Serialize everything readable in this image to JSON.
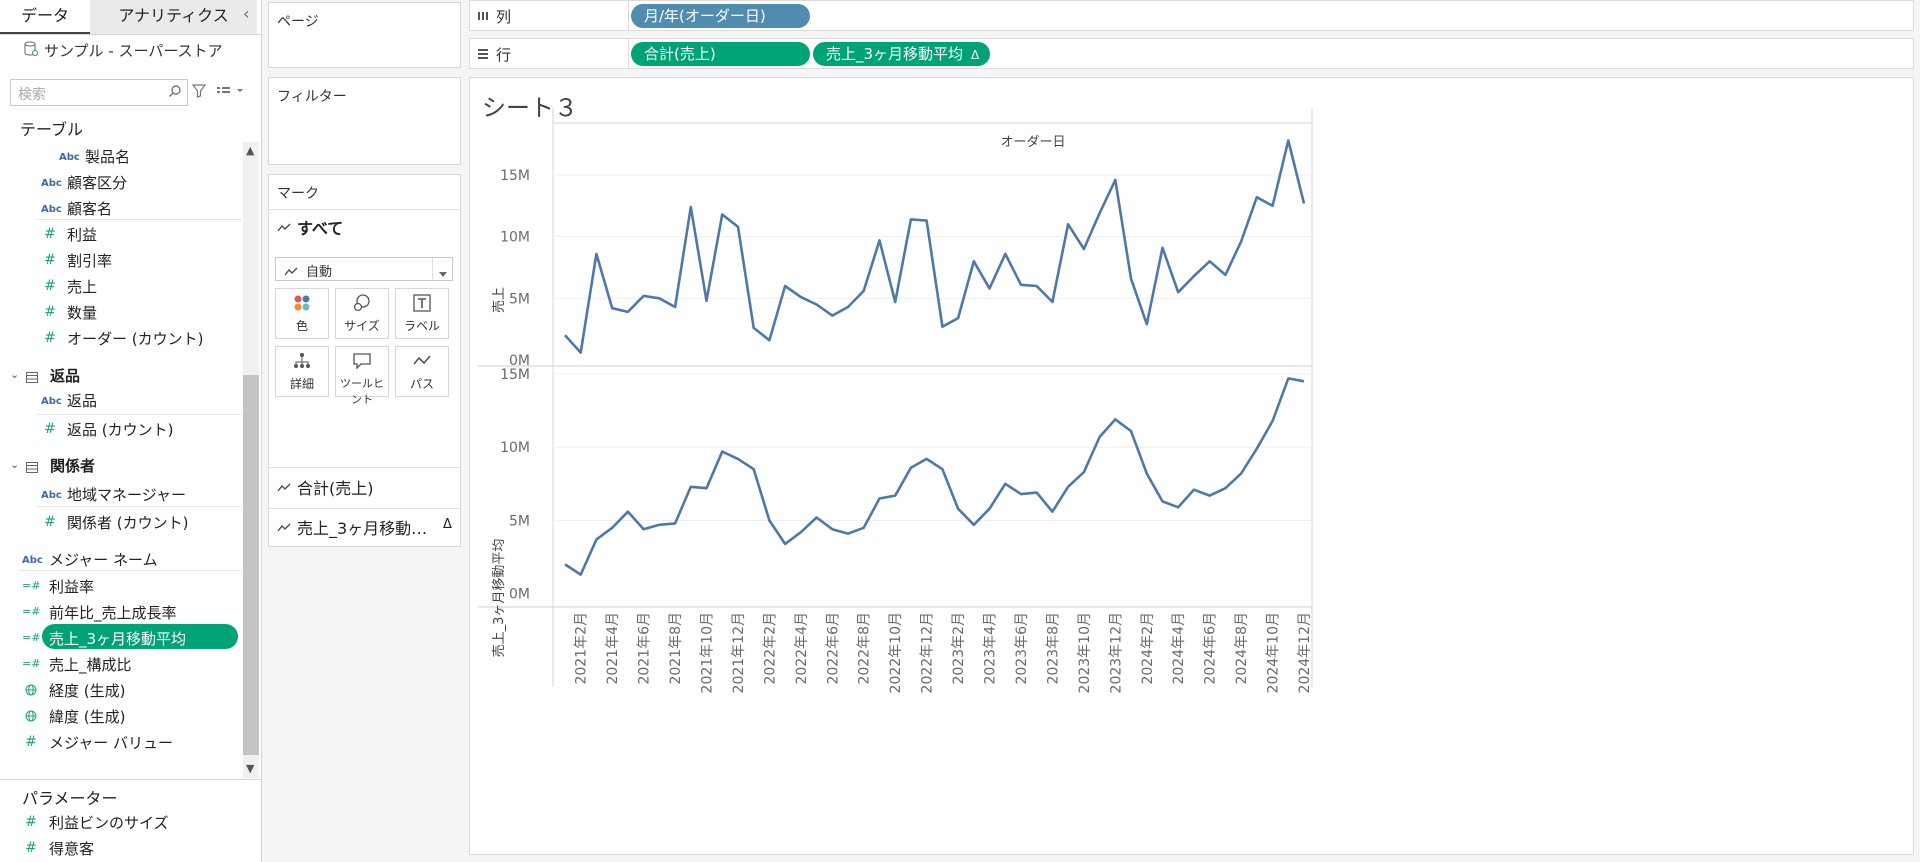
{
  "data_pane": {
    "tab_data": "データ",
    "tab_analytics": "アナリティクス",
    "collapse_glyph": "‹",
    "datasource": "サンプル - スーパーストア",
    "search_placeholder": "検索",
    "tables_header": "テーブル",
    "fields_a": [
      {
        "type": "Abc",
        "label": "製品名"
      },
      {
        "type": "Abc",
        "label": "顧客区分"
      },
      {
        "type": "Abc",
        "label": "顧客名"
      },
      {
        "type": "#",
        "label": "利益"
      },
      {
        "type": "#",
        "label": "割引率"
      },
      {
        "type": "#",
        "label": "売上"
      },
      {
        "type": "#",
        "label": "数量"
      },
      {
        "type": "#",
        "label": "オーダー (カウント)"
      }
    ],
    "table_returns": "返品",
    "fields_returns": [
      {
        "type": "Abc",
        "label": "返品"
      },
      {
        "type": "#",
        "label": "返品 (カウント)"
      }
    ],
    "table_people": "関係者",
    "fields_people": [
      {
        "type": "Abc",
        "label": "地域マネージャー"
      },
      {
        "type": "#",
        "label": "関係者 (カウント)"
      }
    ],
    "measure_names": "メジャー ネーム",
    "calc_fields": [
      {
        "type": "=#",
        "label": "利益率"
      },
      {
        "type": "=#",
        "label": "前年比_売上成長率"
      },
      {
        "type": "=#",
        "label": "売上_3ヶ月移動平均"
      },
      {
        "type": "=#",
        "label": "売上_構成比"
      },
      {
        "type": "geo",
        "label": "経度 (生成)"
      },
      {
        "type": "geo",
        "label": "緯度 (生成)"
      },
      {
        "type": "#",
        "label": "メジャー バリュー"
      }
    ],
    "parameters_header": "パラメーター",
    "parameters": [
      {
        "type": "#",
        "label": "利益ビンのサイズ"
      },
      {
        "type": "#",
        "label": "得意客"
      }
    ]
  },
  "pages_label": "ページ",
  "filters_label": "フィルター",
  "marks": {
    "header": "マーク",
    "all_label": "すべて",
    "type_select": "自動",
    "buttons": [
      "色",
      "サイズ",
      "ラベル",
      "詳細",
      "ツールヒント",
      "パス"
    ],
    "card_sum": "合計(売上)",
    "card_ma": "売上_3ヶ月移動…",
    "delta_glyph": "Δ"
  },
  "shelves": {
    "columns_label": "列",
    "rows_label": "行",
    "columns_pill": "月/年(オーダー日)",
    "rows_pill_1": "合計(売上)",
    "rows_pill_2": "売上_3ヶ月移動平均",
    "delta_glyph": "Δ"
  },
  "colors": {
    "line": "#4e79a7",
    "pill_green": "#00a375",
    "pill_blue": "#4f8cb0"
  },
  "sheet_title": "シート３",
  "chart_data": {
    "type": "line",
    "header": "オーダー日",
    "x_ticks": [
      "2021年2月",
      "2021年4月",
      "2021年6月",
      "2021年8月",
      "2021年10月",
      "2021年12月",
      "2022年2月",
      "2022年4月",
      "2022年6月",
      "2022年8月",
      "2022年10月",
      "2022年12月",
      "2023年2月",
      "2023年4月",
      "2023年6月",
      "2023年8月",
      "2023年10月",
      "2023年12月",
      "2024年2月",
      "2024年4月",
      "2024年6月",
      "2024年8月",
      "2024年10月",
      "2024年12月"
    ],
    "top": {
      "ylabel": "売上",
      "ylim": [
        0,
        18
      ],
      "y_ticks": [
        {
          "v": 0,
          "label": "0M"
        },
        {
          "v": 5,
          "label": "5M"
        },
        {
          "v": 10,
          "label": "10M"
        },
        {
          "v": 15,
          "label": "15M"
        }
      ],
      "values": [
        2.0,
        0.6,
        8.6,
        4.2,
        3.9,
        5.2,
        5.0,
        4.3,
        12.4,
        4.8,
        11.8,
        10.8,
        2.6,
        1.6,
        6.0,
        5.1,
        4.5,
        3.6,
        4.3,
        5.6,
        9.7,
        4.7,
        11.4,
        11.3,
        2.7,
        3.4,
        8.0,
        5.8,
        8.6,
        6.1,
        6.0,
        4.7,
        11.0,
        9.0,
        11.9,
        14.6,
        6.6,
        2.9,
        9.1,
        5.5,
        6.8,
        8.0,
        6.9,
        9.6,
        13.2,
        12.5,
        17.8,
        12.7
      ]
    },
    "bottom": {
      "ylabel": "売上_3ヶ月移動平均",
      "ylim": [
        -0.5,
        15
      ],
      "y_ticks": [
        {
          "v": 0,
          "label": "0M"
        },
        {
          "v": 5,
          "label": "5M"
        },
        {
          "v": 10,
          "label": "10M"
        },
        {
          "v": 15,
          "label": "15M"
        }
      ],
      "values": [
        2.0,
        1.3,
        3.7,
        4.5,
        5.6,
        4.4,
        4.7,
        4.8,
        7.3,
        7.2,
        9.7,
        9.2,
        8.5,
        5.0,
        3.4,
        4.2,
        5.2,
        4.4,
        4.1,
        4.5,
        6.5,
        6.7,
        8.6,
        9.2,
        8.5,
        5.8,
        4.7,
        5.8,
        7.5,
        6.8,
        6.9,
        5.6,
        7.3,
        8.3,
        10.7,
        11.9,
        11.1,
        8.2,
        6.3,
        5.9,
        7.1,
        6.7,
        7.2,
        8.2,
        9.9,
        11.8,
        14.7,
        14.5
      ]
    }
  }
}
